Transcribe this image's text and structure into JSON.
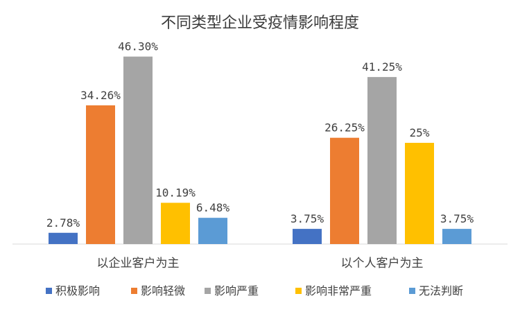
{
  "chart_data": {
    "type": "bar",
    "title": "不同类型企业受疫情影响程度",
    "categories": [
      "以企业客户为主",
      "以个人客户为主"
    ],
    "series": [
      {
        "name": "积极影响",
        "color": "#4472C4",
        "values": [
          2.78,
          3.75
        ],
        "labels": [
          "2.78%",
          "3.75%"
        ]
      },
      {
        "name": "影响轻微",
        "color": "#ED7D31",
        "values": [
          34.26,
          26.25
        ],
        "labels": [
          "34.26%",
          "26.25%"
        ]
      },
      {
        "name": "影响严重",
        "color": "#A5A5A5",
        "values": [
          46.3,
          41.25
        ],
        "labels": [
          "46.30%",
          "41.25%"
        ]
      },
      {
        "name": "影响非常严重",
        "color": "#FFC000",
        "values": [
          10.19,
          25
        ],
        "labels": [
          "10.19%",
          "25%"
        ]
      },
      {
        "name": "无法判断",
        "color": "#5B9BD5",
        "values": [
          6.48,
          3.75
        ],
        "labels": [
          "6.48%",
          "3.75%"
        ]
      }
    ],
    "ylim": [
      0,
      50
    ],
    "xlabel": "",
    "ylabel": "",
    "grid": false,
    "legend_position": "bottom"
  }
}
